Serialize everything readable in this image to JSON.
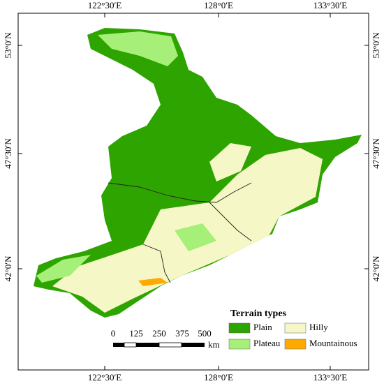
{
  "map": {
    "top_labels": [
      "122°30′E",
      "128°0′E",
      "133°30′E"
    ],
    "bottom_labels": [
      "122°30′E",
      "128°0′E",
      "133°30′E"
    ],
    "left_labels": [
      "53°0′N",
      "47°30′N",
      "42°0′N"
    ],
    "right_labels": [
      "53°0′N",
      "47°30′N",
      "42°0′N"
    ],
    "legend": {
      "title": "Terrain types",
      "items": [
        {
          "label": "Plain",
          "color": "#2ea400"
        },
        {
          "label": "Hilly",
          "color": "#f6f7c6"
        },
        {
          "label": "Plateau",
          "color": "#a6ef78"
        },
        {
          "label": "Mountainous",
          "color": "#ffaa00"
        }
      ]
    },
    "scale_bar": {
      "ticks": [
        "0",
        "125",
        "250",
        "375",
        "500"
      ],
      "unit": "km"
    }
  }
}
